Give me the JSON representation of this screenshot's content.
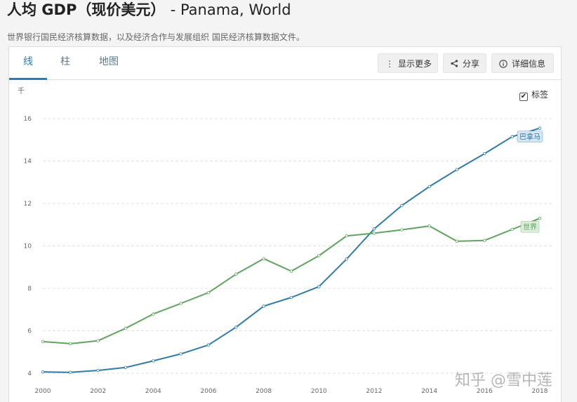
{
  "header": {
    "title_main": "人均 GDP（现价美元）",
    "title_suffix": "- Panama, World",
    "source_note": "世界银行国民经济核算数据，以及经济合作与发展组织 国民经济核算数据文件。"
  },
  "tabs": [
    {
      "label": "线",
      "active": true
    },
    {
      "label": "柱",
      "active": false
    },
    {
      "label": "地图",
      "active": false
    }
  ],
  "toolbar": {
    "more_label": "显示更多",
    "share_label": "分享",
    "details_label": "详细信息"
  },
  "labels_toggle": {
    "label": "标签",
    "checked": true
  },
  "watermark": "知乎 @雪中莲",
  "chart_data": {
    "type": "line",
    "yunit": "千",
    "xlabel": "",
    "ylabel": "",
    "x": [
      2000,
      2001,
      2002,
      2003,
      2004,
      2005,
      2006,
      2007,
      2008,
      2009,
      2010,
      2011,
      2012,
      2013,
      2014,
      2015,
      2016,
      2017,
      2018
    ],
    "xticks": [
      2000,
      2002,
      2004,
      2006,
      2008,
      2010,
      2012,
      2014,
      2016,
      2018
    ],
    "yticks": [
      4,
      6,
      8,
      10,
      12,
      14,
      16
    ],
    "ylim": [
      3.8,
      16.6
    ],
    "grid": true,
    "series": [
      {
        "name": "巴拿马",
        "color": "#2f7ba8",
        "label_bg": "#d6e6f3",
        "values": [
          4.06,
          4.04,
          4.13,
          4.27,
          4.58,
          4.91,
          5.33,
          6.17,
          7.16,
          7.57,
          8.08,
          9.38,
          10.8,
          11.9,
          12.8,
          13.6,
          14.35,
          15.15,
          15.55
        ]
      },
      {
        "name": "世界",
        "color": "#5fa35f",
        "label_bg": "#dbeedb",
        "values": [
          5.49,
          5.39,
          5.53,
          6.12,
          6.79,
          7.29,
          7.8,
          8.67,
          9.4,
          8.81,
          9.54,
          10.47,
          10.6,
          10.76,
          10.94,
          10.22,
          10.26,
          10.78,
          11.3
        ]
      }
    ]
  }
}
